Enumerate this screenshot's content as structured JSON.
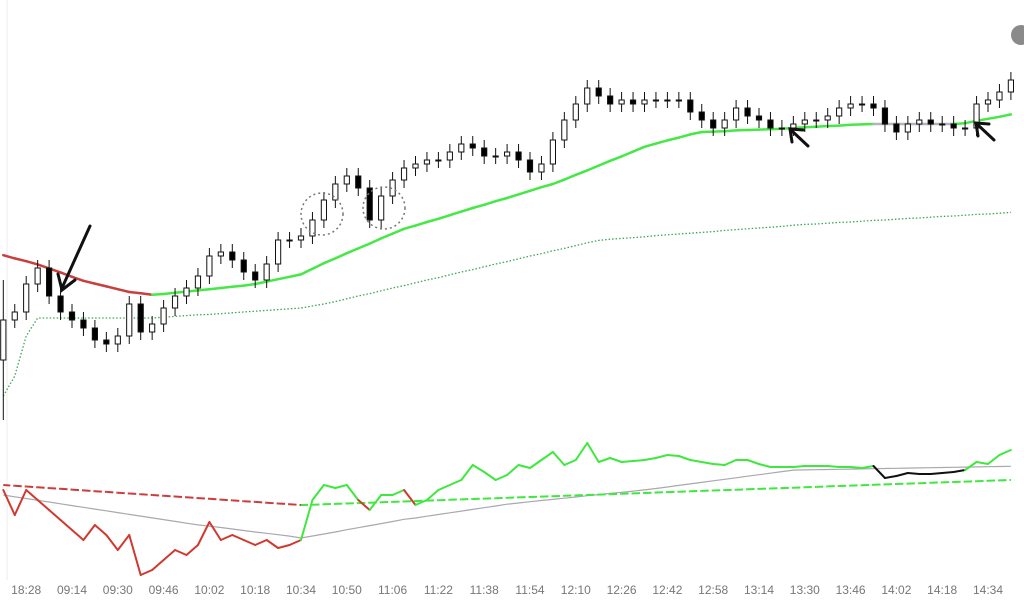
{
  "chart_data": {
    "type": "candlestick",
    "categories": [
      null,
      null,
      "18:28",
      null,
      null,
      null,
      "09:14",
      null,
      null,
      null,
      "09:30",
      null,
      null,
      null,
      "09:46",
      null,
      null,
      null,
      "10:02",
      null,
      null,
      null,
      "10:18",
      null,
      null,
      null,
      "10:34",
      null,
      null,
      null,
      "10:50",
      null,
      null,
      null,
      "11:06",
      null,
      null,
      null,
      "11:22",
      null,
      null,
      null,
      "11:38",
      null,
      null,
      null,
      "11:54",
      null,
      null,
      null,
      "12:10",
      null,
      null,
      null,
      "12:26",
      null,
      null,
      null,
      "12:42",
      null,
      null,
      null,
      "12:58",
      null,
      null,
      null,
      "13:14",
      null,
      null,
      null,
      "13:30",
      null,
      null,
      null,
      "13:46",
      null,
      null,
      null,
      "14:02",
      null,
      null,
      null,
      "14:18",
      null,
      null,
      null,
      "14:34",
      null,
      null
    ],
    "open": [
      20,
      30,
      32,
      39,
      43,
      36,
      32,
      30,
      28,
      25,
      24,
      26,
      34,
      27,
      29,
      33,
      36,
      38,
      41,
      46,
      47,
      45,
      42,
      40,
      44,
      50,
      50,
      51,
      55,
      60,
      64,
      66,
      63,
      55,
      61,
      65,
      68,
      69,
      70,
      70,
      72,
      74,
      73,
      71,
      71,
      72,
      70,
      67,
      69,
      75,
      80,
      84,
      88,
      86,
      84,
      85,
      84,
      85,
      85,
      85,
      85,
      82,
      80,
      78,
      80,
      83,
      81,
      80,
      78,
      78,
      79,
      80,
      80,
      81,
      83,
      84,
      84,
      83,
      79,
      77,
      79,
      80,
      79,
      79,
      78,
      78,
      84,
      85,
      87
    ],
    "high": [
      40,
      34,
      41,
      45,
      45,
      38,
      34,
      32,
      30,
      27,
      28,
      36,
      36,
      31,
      35,
      38,
      40,
      43,
      48,
      49,
      49,
      47,
      44,
      46,
      52,
      52,
      53,
      57,
      62,
      66,
      68,
      68,
      65,
      63,
      67,
      70,
      71,
      72,
      72,
      74,
      76,
      76,
      75,
      73,
      74,
      74,
      72,
      71,
      77,
      82,
      86,
      90,
      90,
      88,
      87,
      87,
      87,
      87,
      87,
      87,
      87,
      84,
      82,
      82,
      85,
      85,
      83,
      82,
      80,
      81,
      82,
      82,
      83,
      85,
      86,
      86,
      86,
      85,
      81,
      81,
      82,
      82,
      81,
      81,
      80,
      86,
      87,
      89,
      92
    ],
    "low": [
      5,
      28,
      30,
      37,
      34,
      30,
      28,
      26,
      23,
      22,
      22,
      24,
      25,
      25,
      27,
      31,
      34,
      36,
      39,
      44,
      43,
      40,
      38,
      38,
      42,
      48,
      48,
      49,
      53,
      58,
      62,
      61,
      53,
      53,
      59,
      63,
      66,
      67,
      68,
      68,
      70,
      71,
      69,
      69,
      69,
      68,
      65,
      65,
      67,
      73,
      78,
      82,
      84,
      82,
      82,
      82,
      82,
      83,
      83,
      83,
      80,
      78,
      76,
      76,
      78,
      79,
      78,
      76,
      76,
      76,
      77,
      78,
      78,
      79,
      81,
      82,
      81,
      77,
      75,
      75,
      77,
      77,
      77,
      76,
      76,
      76,
      82,
      83,
      85
    ],
    "close": [
      30,
      32,
      39,
      43,
      36,
      32,
      30,
      28,
      25,
      24,
      26,
      34,
      27,
      29,
      33,
      36,
      38,
      41,
      46,
      47,
      45,
      42,
      40,
      44,
      50,
      50,
      51,
      55,
      60,
      64,
      66,
      63,
      55,
      61,
      65,
      68,
      69,
      70,
      70,
      72,
      74,
      73,
      71,
      71,
      72,
      70,
      67,
      69,
      75,
      80,
      84,
      88,
      86,
      84,
      85,
      84,
      85,
      85,
      85,
      85,
      82,
      80,
      78,
      80,
      83,
      81,
      80,
      78,
      78,
      79,
      80,
      80,
      81,
      83,
      84,
      84,
      83,
      79,
      77,
      79,
      80,
      79,
      79,
      78,
      78,
      84,
      85,
      87,
      90
    ],
    "ylim": [
      0,
      110
    ],
    "up_color": "#ffffff",
    "down_color": "#000000",
    "overlays": [
      {
        "style": "dotted",
        "color": "#3aa655",
        "values": [
          11,
          16,
          26,
          30.5,
          30.5,
          30.5,
          30.5,
          30.5,
          30.5,
          30.5,
          30.5,
          30.5,
          30.5,
          30.5,
          30.7,
          30.9,
          31.1,
          31.3,
          31.4,
          31.6,
          31.8,
          32.0,
          32.2,
          32.4,
          32.6,
          32.8,
          33.0,
          33.5,
          34.0,
          34.6,
          35.3,
          36.0,
          36.6,
          37.3,
          38.0,
          38.6,
          39.3,
          40.0,
          40.6,
          41.3,
          42.0,
          42.6,
          43.3,
          44.0,
          44.6,
          45.3,
          46.0,
          46.6,
          47.3,
          47.9,
          48.6,
          49.3,
          49.9,
          50.2,
          50.4,
          50.6,
          50.8,
          51.1,
          51.3,
          51.5,
          51.7,
          51.9,
          52.1,
          52.4,
          52.6,
          52.8,
          53.0,
          53.2,
          53.4,
          53.7,
          53.9,
          54.0,
          54.2,
          54.4,
          54.5,
          54.7,
          54.9,
          55.0,
          55.2,
          55.4,
          55.5,
          55.7,
          55.9,
          56.0,
          56.2,
          56.4,
          56.5,
          56.7,
          56.9
        ]
      },
      {
        "style": "solid",
        "rising_color": "#45e845",
        "falling_color": "#c8403c",
        "flat_color": "#b4b4bc",
        "values": [
          46.2,
          45.4,
          44.7,
          43.9,
          42.9,
          41.9,
          40.8,
          39.8,
          39.1,
          38.4,
          37.7,
          37.0,
          36.7,
          36.3,
          36.5,
          36.8,
          37.1,
          37.4,
          37.7,
          38.0,
          38.3,
          38.6,
          39.0,
          39.6,
          40.2,
          40.8,
          41.4,
          42.8,
          44.2,
          45.4,
          46.7,
          47.9,
          49.1,
          50.4,
          51.6,
          52.8,
          53.6,
          54.5,
          55.3,
          56.2,
          57.1,
          58,
          58.8,
          59.7,
          60.5,
          61.4,
          62.3,
          63.2,
          64.0,
          65.1,
          66.3,
          67.4,
          68.6,
          69.8,
          70.9,
          72.1,
          73.3,
          74.1,
          74.9,
          75.6,
          76.4,
          77.0,
          77.1,
          77.2,
          77.4,
          77.5,
          77.6,
          77.7,
          77.8,
          78.0,
          78.2,
          78.3,
          78.5,
          78.6,
          78.8,
          78.9,
          79,
          79,
          79,
          79,
          79,
          79,
          79,
          79,
          79.2,
          79.8,
          80.3,
          80.8,
          81.4
        ]
      }
    ],
    "oscillator": {
      "ylim": [
        -70,
        70
      ],
      "fast": {
        "above_color": "#3ee83e",
        "below_color": "#d0392f",
        "between_color": "#111111",
        "values": [
          20,
          -5,
          20,
          10,
          0,
          -10,
          -20,
          -30,
          -15,
          -25,
          -40,
          -25,
          -65,
          -60,
          -50,
          -40,
          -45,
          -35,
          -12,
          -30,
          -25,
          -30,
          -35,
          -30,
          -38,
          -35,
          -30,
          10,
          25,
          22,
          25,
          10,
          0,
          15,
          15,
          20,
          5,
          10,
          20,
          25,
          30,
          45,
          38,
          30,
          35,
          45,
          42,
          50,
          58,
          45,
          50,
          67,
          48,
          52,
          48,
          49,
          50,
          52,
          55,
          54,
          50,
          48,
          46,
          45,
          50,
          50,
          46,
          43,
          43,
          43,
          44,
          44,
          44,
          43,
          43,
          42,
          44,
          32,
          34,
          37,
          36,
          36,
          37,
          38,
          40,
          48,
          46,
          55,
          60
        ]
      },
      "signal": {
        "color": "#a8a8b0",
        "values": [
          15,
          13.2,
          11.5,
          9.7,
          8.0,
          6.2,
          4.4,
          2.7,
          0.9,
          -0.8,
          -2.6,
          -4.4,
          -6.1,
          -7.9,
          -9.6,
          -11.4,
          -13.2,
          -14.9,
          -16.2,
          -17.5,
          -19,
          -20.5,
          -22,
          -23.3,
          -24.7,
          -26.1,
          -28,
          -26,
          -24,
          -22,
          -19.7,
          -17.7,
          -15.6,
          -13.6,
          -11.5,
          -9.3,
          -8,
          -6.2,
          -4.5,
          -2.8,
          -1.1,
          0.6,
          2.3,
          4,
          5.8,
          7,
          8.3,
          9.5,
          10.6,
          11.8,
          13,
          14.3,
          15.4,
          16.6,
          17.7,
          18.9,
          20.1,
          21.5,
          23,
          24.6,
          26.1,
          27.6,
          29.2,
          30.7,
          32.2,
          33.8,
          35.3,
          36.8,
          38.4,
          39.9,
          40.1,
          40.3,
          40.5,
          40.7,
          40.9,
          41.1,
          41.3,
          41.5,
          41.7,
          41.9,
          42.1,
          42.3,
          42.5,
          42.7,
          42.9,
          43.1,
          43.3,
          43.5,
          43.7
        ]
      },
      "slow": {
        "style": "dashed",
        "rising_color": "#3ee83e",
        "falling_color": "#cc3b3b",
        "values": [
          25,
          24.2,
          23.5,
          22.7,
          21.9,
          21.2,
          20.4,
          19.6,
          18.8,
          18.1,
          17.3,
          16.5,
          15.8,
          15,
          14.2,
          13.5,
          12.7,
          11.9,
          11.2,
          10.4,
          9.6,
          8.8,
          8.1,
          7.3,
          6.5,
          5.8,
          5,
          5.3,
          5.7,
          6.1,
          6.5,
          6.9,
          7.3,
          7.7,
          8.1,
          8.5,
          8.9,
          9.4,
          9.8,
          10.2,
          10.6,
          11,
          11.4,
          11.8,
          12.2,
          12.6,
          13,
          13.4,
          13.8,
          14.2,
          14.6,
          15,
          15.4,
          15.8,
          16.2,
          16.6,
          17,
          17.5,
          17.9,
          18.3,
          18.7,
          19.1,
          19.5,
          19.9,
          20.3,
          20.7,
          21.1,
          21.5,
          21.9,
          22.3,
          22.7,
          23.1,
          23.6,
          24,
          24.4,
          24.8,
          25.2,
          25.6,
          26,
          26.4,
          26.8,
          27.2,
          27.6,
          28,
          28.4,
          28.8,
          29.2,
          29.6,
          30
        ]
      }
    }
  }
}
